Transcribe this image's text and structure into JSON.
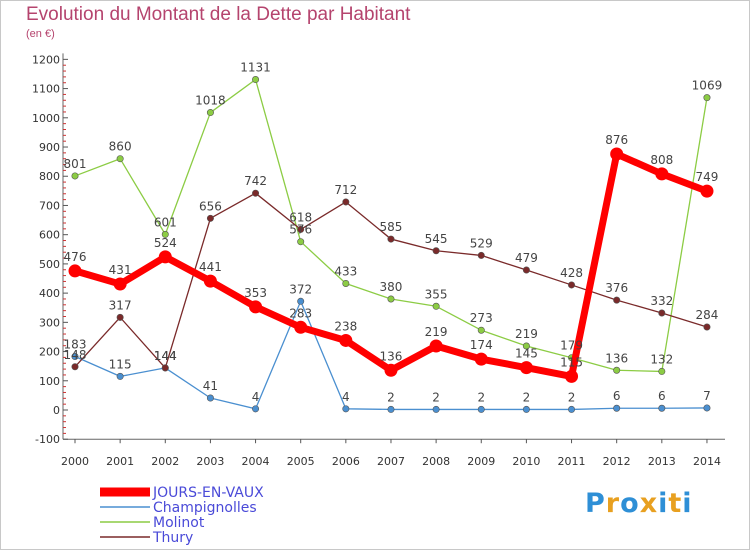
{
  "title": "Evolution du Montant de la Dette par Habitant",
  "subtitle": "(en €)",
  "logo": {
    "text": "Proxiti",
    "colors": [
      "#2e8fd6",
      "#e8a020",
      "#2e8fd6",
      "#e8a020",
      "#2e8fd6",
      "#e8a020",
      "#2e8fd6"
    ]
  },
  "chart_data": {
    "type": "line",
    "x": [
      "2000",
      "2001",
      "2002",
      "2003",
      "2004",
      "2005",
      "2006",
      "2007",
      "2008",
      "2009",
      "2010",
      "2011",
      "2012",
      "2013",
      "2014"
    ],
    "ylim": [
      -100,
      1200
    ],
    "yticks": [
      "-100",
      "0",
      "100",
      "200",
      "300",
      "400",
      "500",
      "600",
      "700",
      "800",
      "900",
      "1000",
      "1100",
      "1200"
    ],
    "grid": false,
    "legend": "bottom-left",
    "series": [
      {
        "name": "Champignolles",
        "color": "#4a8fd0",
        "width": 1.3,
        "values": [
          183,
          115,
          144,
          41,
          4,
          372,
          4,
          2,
          2,
          2,
          2,
          2,
          6,
          6,
          7
        ],
        "labels": [
          "183",
          "115",
          "144",
          "41",
          "4",
          "372",
          "4",
          "2",
          "2",
          "2",
          "2",
          "2",
          "6",
          "6",
          "7"
        ]
      },
      {
        "name": "Molinot",
        "color": "#8ccc44",
        "width": 1.3,
        "values": [
          801,
          860,
          601,
          1018,
          1131,
          576,
          433,
          380,
          355,
          273,
          219,
          179,
          136,
          132,
          1069
        ],
        "labels": [
          "801",
          "860",
          "601",
          "1018",
          "1131",
          "576",
          "433",
          "380",
          "355",
          "273",
          "219",
          "179",
          "136",
          "132",
          "1069"
        ]
      },
      {
        "name": "Thury",
        "color": "#7a2a2a",
        "width": 1.3,
        "values": [
          148,
          317,
          144,
          656,
          742,
          618,
          712,
          585,
          545,
          529,
          479,
          428,
          376,
          332,
          284
        ],
        "labels": [
          "148",
          "317",
          "144",
          "656",
          "742",
          "618",
          "712",
          "585",
          "545",
          "529",
          "479",
          "428",
          "376",
          "332",
          "284"
        ]
      },
      {
        "name": "JOURS-EN-VAUX",
        "color": "#ff0000",
        "width": 7,
        "values": [
          476,
          431,
          524,
          441,
          353,
          283,
          238,
          136,
          219,
          174,
          145,
          115,
          876,
          808,
          749
        ],
        "labels": [
          "476",
          "431",
          "524",
          "441",
          "353",
          "283",
          "238",
          "136",
          "219",
          "174",
          "145",
          "115",
          "876",
          "808",
          "749"
        ]
      }
    ],
    "legend_entries": [
      {
        "name": "JOURS-EN-VAUX",
        "color": "#ff0000",
        "thick": true
      },
      {
        "name": "Champignolles",
        "color": "#4a8fd0",
        "thick": false
      },
      {
        "name": "Molinot",
        "color": "#8ccc44",
        "thick": false
      },
      {
        "name": "Thury",
        "color": "#7a2a2a",
        "thick": false
      }
    ]
  }
}
